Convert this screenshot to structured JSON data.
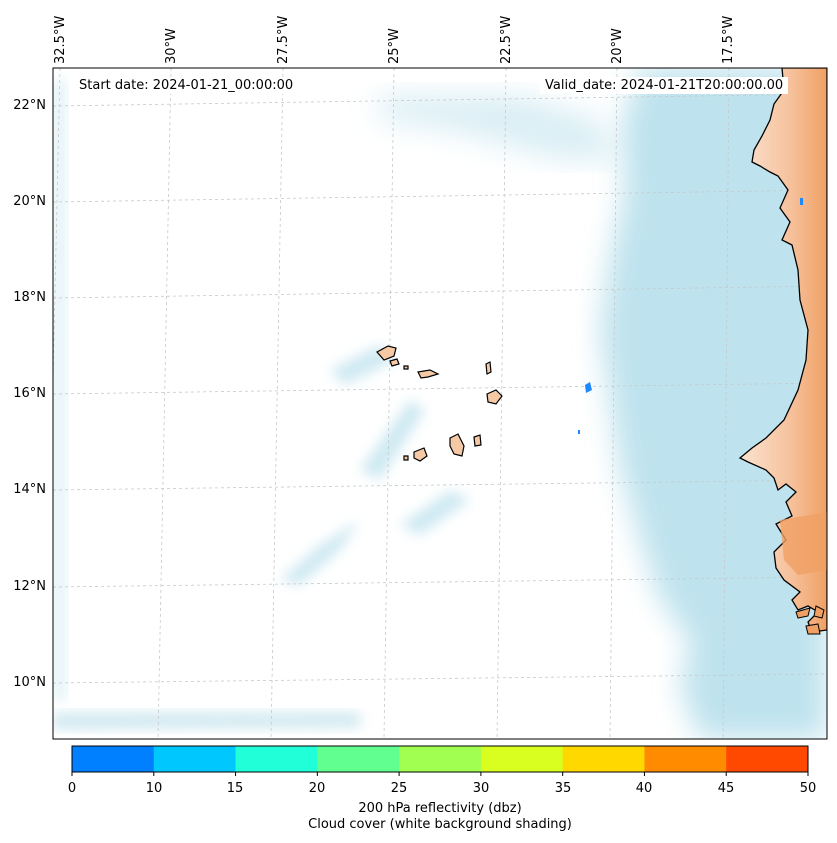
{
  "map": {
    "longitude_labels": [
      "32.5°W",
      "30°W",
      "27.5°W",
      "25°W",
      "22.5°W",
      "20°W",
      "17.5°W"
    ],
    "latitude_labels": [
      "22°N",
      "20°N",
      "18°N",
      "16°N",
      "14°N",
      "12°N",
      "10°N"
    ],
    "start_date": "Start date: 2024-01-21_00:00:00",
    "valid_date": "Valid_date: 2024-01-21T20:00:00.00",
    "colors": {
      "ocean": "#ffffff",
      "land": "#f6c9a6",
      "land_dark": "#f0a064",
      "cloud": "#a9d9e8",
      "coast": "#000000",
      "grid": "#c8c8c8"
    }
  },
  "colorbar": {
    "ticks": [
      "0",
      "10",
      "15",
      "20",
      "25",
      "30",
      "35",
      "40",
      "45",
      "50"
    ],
    "colors": [
      "#0080ff",
      "#00c8ff",
      "#20ffd8",
      "#60ff90",
      "#a0ff50",
      "#d8ff20",
      "#ffd800",
      "#ff8c00",
      "#ff4800"
    ],
    "label_line1": "200 hPa reflectivity (dbz)",
    "label_line2": "Cloud cover (white background shading)"
  }
}
